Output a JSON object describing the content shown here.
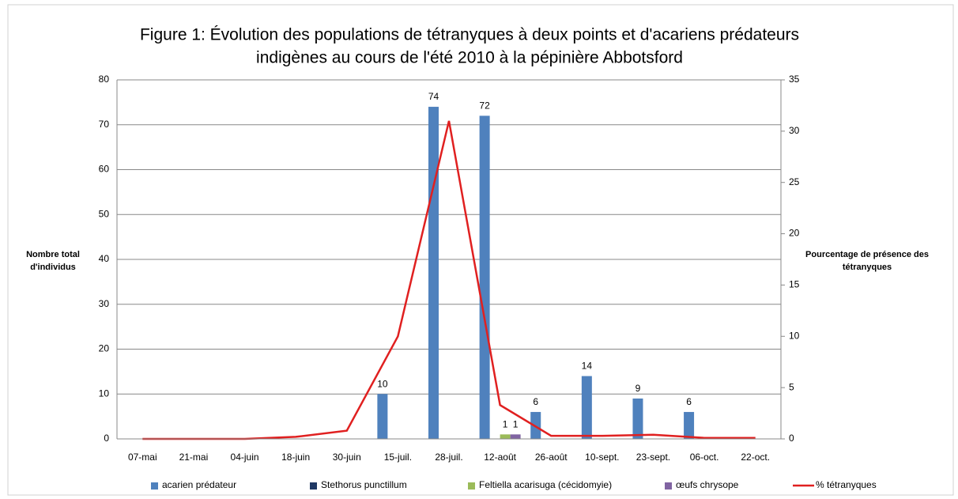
{
  "chart_data": {
    "type": "bar",
    "title": [
      "Figure 1: Évolution des populations de tétranyques à deux points et d'acariens prédateurs",
      "indigènes au cours de l'été 2010 à la pépinière Abbotsford"
    ],
    "ylabel": [
      "Nombre total",
      "d'individus"
    ],
    "y2label": [
      "Pourcentage de présence des",
      "tétranyques"
    ],
    "categories": [
      "07-mai",
      "21-mai",
      "04-juin",
      "18-juin",
      "30-juin",
      "15-juil.",
      "28-juil.",
      "12-août",
      "26-août",
      "10-sept.",
      "23-sept.",
      "06-oct.",
      "22-oct."
    ],
    "series": [
      {
        "name": "acarien prédateur",
        "color": "#4f81bd",
        "values": [
          null,
          null,
          null,
          null,
          null,
          10,
          74,
          72,
          6,
          14,
          9,
          6,
          null
        ]
      },
      {
        "name": "Stethorus punctillum",
        "color": "#1f3864",
        "values": [
          null,
          null,
          null,
          null,
          null,
          null,
          null,
          null,
          null,
          null,
          null,
          null,
          null
        ]
      },
      {
        "name": "Feltiella acarisuga (cécidomyie)",
        "color": "#9bbb59",
        "values": [
          null,
          null,
          null,
          null,
          null,
          null,
          null,
          1,
          null,
          null,
          null,
          null,
          null
        ]
      },
      {
        "name": "œufs chrysope",
        "color": "#8064a2",
        "values": [
          null,
          null,
          null,
          null,
          null,
          null,
          null,
          1,
          null,
          null,
          null,
          null,
          null
        ]
      },
      {
        "name": "% tétranyques",
        "color": "#e02020",
        "type": "line",
        "axis": "y2",
        "values": [
          0,
          0,
          0,
          0.2,
          0.8,
          10,
          31,
          3.3,
          0.3,
          0.3,
          0.4,
          0.1,
          0.1
        ]
      }
    ],
    "ylim": [
      0,
      80
    ],
    "yticks": [
      0,
      10,
      20,
      30,
      40,
      50,
      60,
      70,
      80
    ],
    "y2lim": [
      0,
      35
    ],
    "y2ticks": [
      0,
      5,
      10,
      15,
      20,
      25,
      30,
      35
    ],
    "grid": true,
    "legend": "bottom"
  }
}
